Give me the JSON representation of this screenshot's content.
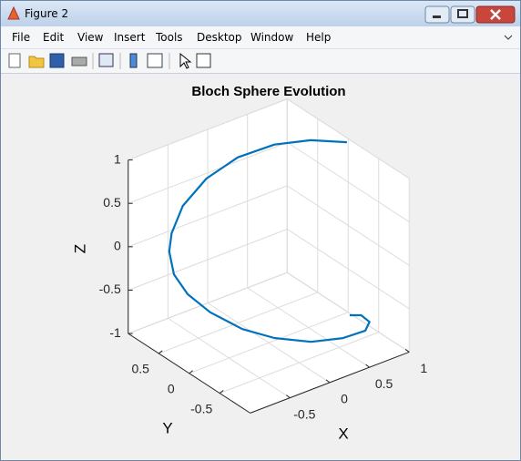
{
  "window": {
    "title": "Figure 2",
    "menu": [
      "File",
      "Edit",
      "View",
      "Insert",
      "Tools",
      "Desktop",
      "Window",
      "Help"
    ]
  },
  "chart_data": {
    "type": "line3d",
    "title": "Bloch Sphere Evolution",
    "xlabel": "X",
    "ylabel": "Y",
    "zlabel": "Z",
    "x": [
      1.0,
      0.76,
      0.47,
      0.11,
      -0.27,
      -0.62,
      -0.83,
      -0.86,
      -0.87,
      -0.79,
      -0.62,
      -0.4,
      -0.13,
      0.21,
      0.55,
      0.84,
      1.0,
      0.94,
      0.85
    ],
    "y": [
      0.02,
      0.3,
      0.52,
      0.65,
      0.67,
      0.6,
      0.51,
      0.51,
      0.42,
      0.3,
      0.15,
      -0.09,
      -0.26,
      -0.42,
      -0.5,
      -0.49,
      -0.35,
      -0.29,
      -0.22
    ],
    "z": [
      0.95,
      0.93,
      0.88,
      0.8,
      0.68,
      0.52,
      0.32,
      0.12,
      -0.1,
      -0.3,
      -0.5,
      -0.66,
      -0.78,
      -0.87,
      -0.91,
      -0.93,
      -0.95,
      -0.88,
      -0.88
    ],
    "color": "#0072bd",
    "xlim": [
      -1,
      1
    ],
    "ylim": [
      -1,
      1
    ],
    "zlim": [
      -1,
      1
    ],
    "xticks": [
      -0.5,
      0,
      0.5,
      1
    ],
    "yticks": [
      -0.5,
      0,
      0.5
    ],
    "zticks": [
      -1,
      -0.5,
      0,
      0.5,
      1
    ],
    "grid": true
  }
}
